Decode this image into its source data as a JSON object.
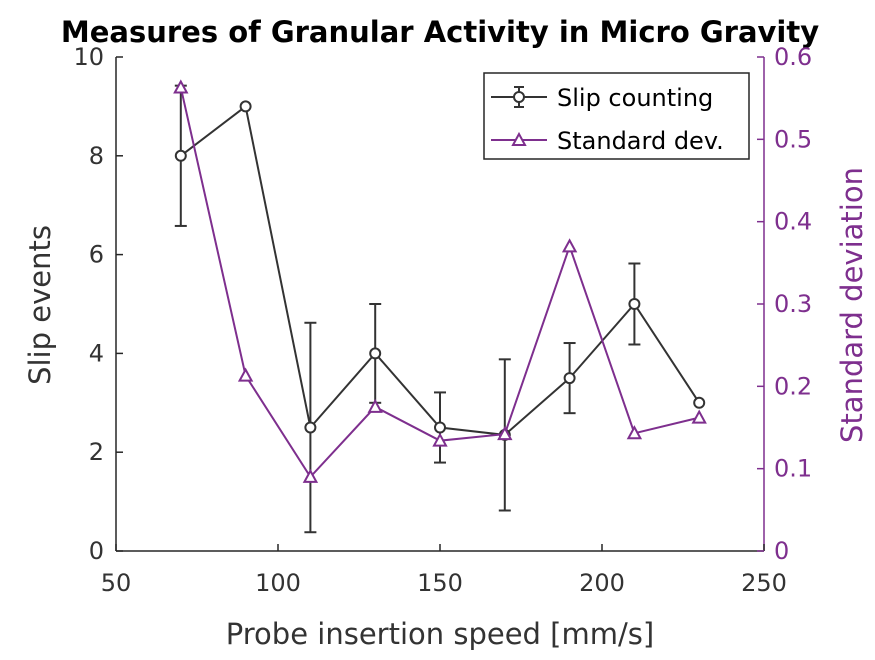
{
  "chart_data": {
    "type": "line",
    "title": "Measures of Granular Activity in Micro Gravity",
    "xlabel": "Probe insertion speed [mm/s]",
    "ylabel_left": "Slip events",
    "ylabel_right": "Standard deviation",
    "xlim": [
      50,
      250
    ],
    "ylim_left": [
      0,
      10
    ],
    "ylim_right": [
      0,
      0.6
    ],
    "xticks": [
      50,
      100,
      150,
      200,
      250
    ],
    "yticks_left": [
      0,
      2,
      4,
      6,
      8,
      10
    ],
    "yticks_right": [
      0,
      0.1,
      0.2,
      0.3,
      0.4,
      0.5,
      0.6
    ],
    "grid": false,
    "legend_position": "top-right",
    "series": [
      {
        "name": "Slip counting",
        "axis": "left",
        "marker": "circle",
        "color": "#333333",
        "x": [
          70,
          90,
          110,
          130,
          150,
          170,
          190,
          210,
          230
        ],
        "y": [
          8.0,
          9.0,
          2.5,
          4.0,
          2.5,
          2.35,
          3.5,
          5.0,
          3.0
        ],
        "error": [
          1.42,
          0,
          2.12,
          1.0,
          0.71,
          1.53,
          0.71,
          0.82,
          0
        ]
      },
      {
        "name": "Standard dev.",
        "axis": "right",
        "marker": "triangle",
        "color": "#7e2f8e",
        "x": [
          70,
          90,
          110,
          130,
          150,
          170,
          190,
          210,
          230
        ],
        "y": [
          0.563,
          0.213,
          0.09,
          0.175,
          0.134,
          0.142,
          0.37,
          0.143,
          0.162
        ]
      }
    ]
  }
}
